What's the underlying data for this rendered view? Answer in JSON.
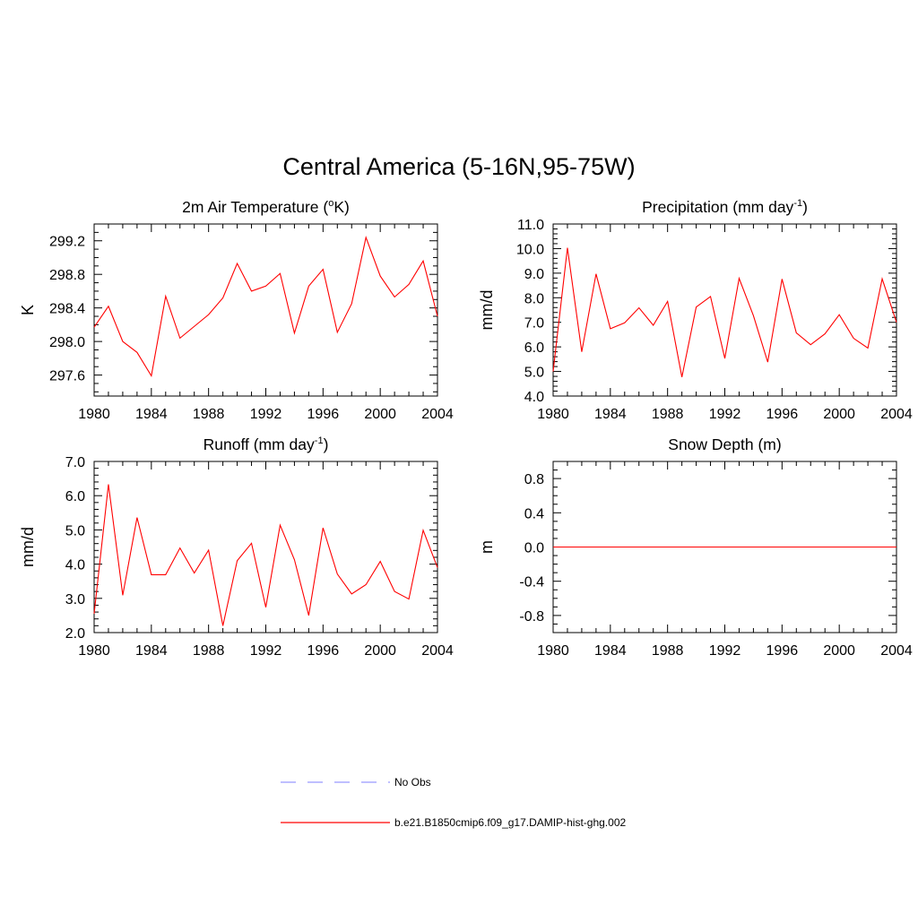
{
  "main_title": "Central America (5-16N,95-75W)",
  "colors": {
    "model": "#ff0000",
    "obs": "#9999ff",
    "axis": "#000000"
  },
  "legend": {
    "obs_label": "No Obs",
    "model_label": "b.e21.B1850cmip6.f09_g17.DAMIP-hist-ghg.002"
  },
  "chart_data": [
    {
      "type": "line",
      "title": "2m Air Temperature (oK)",
      "title_parts": [
        "2m Air Temperature (",
        "o",
        "K)"
      ],
      "title_style": "sup",
      "ylabel": "K",
      "xlim": [
        1980,
        2004
      ],
      "ylim": [
        297.35,
        299.4
      ],
      "x_ticks": [
        1980,
        1984,
        1988,
        1992,
        1996,
        2000,
        2004
      ],
      "y_ticks": [
        297.6,
        298.0,
        298.4,
        298.8,
        299.2
      ],
      "y_tick_labels": [
        "297.6",
        "298.0",
        "298.4",
        "298.8",
        "299.2"
      ],
      "y_minor": 0.1,
      "x": [
        1980,
        1981,
        1982,
        1983,
        1984,
        1985,
        1986,
        1987,
        1988,
        1989,
        1990,
        1991,
        1992,
        1993,
        1994,
        1995,
        1996,
        1997,
        1998,
        1999,
        2000,
        2001,
        2002,
        2003,
        2004
      ],
      "series": [
        {
          "name": "b.e21.B1850cmip6.f09_g17.DAMIP-hist-ghg.002",
          "values": [
            298.17,
            298.42,
            298.0,
            297.87,
            297.59,
            298.54,
            298.04,
            298.18,
            298.32,
            298.52,
            298.93,
            298.6,
            298.66,
            298.81,
            298.1,
            298.66,
            298.86,
            298.11,
            298.45,
            299.24,
            298.78,
            298.53,
            298.68,
            298.96,
            298.3
          ]
        }
      ]
    },
    {
      "type": "line",
      "title": "Precipitation (mm day-1)",
      "title_parts": [
        "Precipitation (mm day",
        "-1",
        ")"
      ],
      "title_style": "sup",
      "ylabel": "mm/d",
      "xlim": [
        1980,
        2004
      ],
      "ylim": [
        4.0,
        11.0
      ],
      "x_ticks": [
        1980,
        1984,
        1988,
        1992,
        1996,
        2000,
        2004
      ],
      "y_ticks": [
        4.0,
        5.0,
        6.0,
        7.0,
        8.0,
        9.0,
        10.0,
        11.0
      ],
      "y_tick_labels": [
        "4.0",
        "5.0",
        "6.0",
        "7.0",
        "8.0",
        "9.0",
        "10.0",
        "11.0"
      ],
      "y_minor": 0.2,
      "x": [
        1980,
        1981,
        1982,
        1983,
        1984,
        1985,
        1986,
        1987,
        1988,
        1989,
        1990,
        1991,
        1992,
        1993,
        1994,
        1995,
        1996,
        1997,
        1998,
        1999,
        2000,
        2001,
        2002,
        2003,
        2004
      ],
      "series": [
        {
          "name": "b.e21.B1850cmip6.f09_g17.DAMIP-hist-ghg.002",
          "values": [
            5.0,
            10.03,
            5.8,
            8.97,
            6.74,
            6.98,
            7.59,
            6.88,
            7.85,
            4.77,
            7.62,
            8.05,
            5.53,
            8.79,
            7.27,
            5.38,
            8.76,
            6.57,
            6.09,
            6.53,
            7.31,
            6.35,
            5.95,
            8.77,
            7.0
          ]
        }
      ]
    },
    {
      "type": "line",
      "title": "Runoff (mm day-1)",
      "title_parts": [
        "Runoff (mm day",
        "-1",
        ")"
      ],
      "title_style": "sup",
      "ylabel": "mm/d",
      "xlim": [
        1980,
        2004
      ],
      "ylim": [
        2.0,
        7.0
      ],
      "x_ticks": [
        1980,
        1984,
        1988,
        1992,
        1996,
        2000,
        2004
      ],
      "y_ticks": [
        2.0,
        3.0,
        4.0,
        5.0,
        6.0,
        7.0
      ],
      "y_tick_labels": [
        "2.0",
        "3.0",
        "4.0",
        "5.0",
        "6.0",
        "7.0"
      ],
      "y_minor": 0.2,
      "x": [
        1980,
        1981,
        1982,
        1983,
        1984,
        1985,
        1986,
        1987,
        1988,
        1989,
        1990,
        1991,
        1992,
        1993,
        1994,
        1995,
        1996,
        1997,
        1998,
        1999,
        2000,
        2001,
        2002,
        2003,
        2004
      ],
      "series": [
        {
          "name": "b.e21.B1850cmip6.f09_g17.DAMIP-hist-ghg.002",
          "values": [
            2.55,
            6.33,
            3.09,
            5.36,
            3.69,
            3.69,
            4.47,
            3.74,
            4.41,
            2.2,
            4.1,
            4.61,
            2.74,
            5.14,
            4.13,
            2.5,
            5.06,
            3.71,
            3.13,
            3.4,
            4.08,
            3.2,
            2.98,
            4.99,
            3.9
          ]
        }
      ]
    },
    {
      "type": "line",
      "title": "Snow Depth (m)",
      "title_parts": [
        "Snow Depth (m)",
        "",
        ""
      ],
      "title_style": "plain",
      "ylabel": "m",
      "xlim": [
        1980,
        2004
      ],
      "ylim": [
        -1.0,
        1.0
      ],
      "x_ticks": [
        1980,
        1984,
        1988,
        1992,
        1996,
        2000,
        2004
      ],
      "y_ticks": [
        -0.8,
        -0.4,
        0.0,
        0.4,
        0.8
      ],
      "y_tick_labels": [
        "-0.8",
        "-0.4",
        "0.0",
        "0.4",
        "0.8"
      ],
      "y_minor": 0.1,
      "x": [
        1980,
        1981,
        1982,
        1983,
        1984,
        1985,
        1986,
        1987,
        1988,
        1989,
        1990,
        1991,
        1992,
        1993,
        1994,
        1995,
        1996,
        1997,
        1998,
        1999,
        2000,
        2001,
        2002,
        2003,
        2004
      ],
      "series": [
        {
          "name": "b.e21.B1850cmip6.f09_g17.DAMIP-hist-ghg.002",
          "values": [
            0,
            0,
            0,
            0,
            0,
            0,
            0,
            0,
            0,
            0,
            0,
            0,
            0,
            0,
            0,
            0,
            0,
            0,
            0,
            0,
            0,
            0,
            0,
            0,
            0
          ]
        }
      ]
    }
  ]
}
